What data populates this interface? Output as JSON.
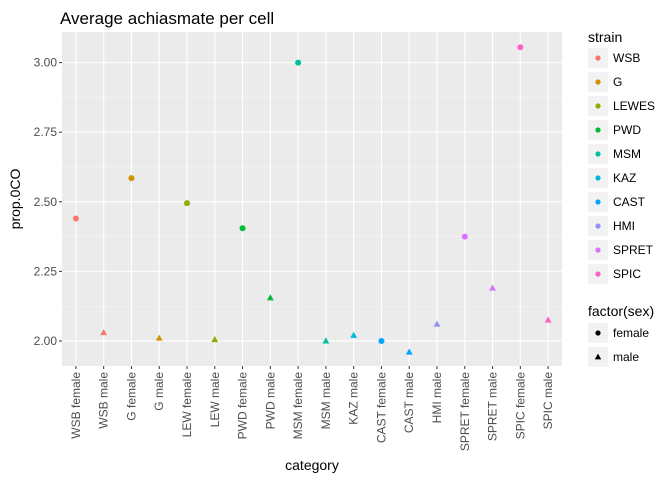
{
  "chart_data": {
    "type": "scatter",
    "title": "Average achiasmate per cell",
    "xlabel": "category",
    "ylabel": "prop.0CO",
    "ylim": [
      1.91,
      3.11
    ],
    "yticks": [
      2.0,
      2.25,
      2.5,
      2.75,
      3.0
    ],
    "ytick_labels": [
      "2.00",
      "2.25",
      "2.50",
      "2.75",
      "3.00"
    ],
    "grid": true,
    "legend_position": "right",
    "categories": [
      "WSB female",
      "WSB male",
      "G female",
      "G male",
      "LEW female",
      "LEW male",
      "PWD female",
      "PWD male",
      "MSM female",
      "MSM male",
      "KAZ male",
      "CAST female",
      "CAST male",
      "HMI male",
      "SPRET female",
      "SPRET male",
      "SPIC female",
      "SPIC male"
    ],
    "points": [
      {
        "category": "WSB female",
        "y": 2.44,
        "strain": "WSB",
        "sex": "female"
      },
      {
        "category": "WSB male",
        "y": 2.03,
        "strain": "WSB",
        "sex": "male"
      },
      {
        "category": "G female",
        "y": 2.585,
        "strain": "G",
        "sex": "female"
      },
      {
        "category": "G male",
        "y": 2.01,
        "strain": "G",
        "sex": "male"
      },
      {
        "category": "LEW female",
        "y": 2.495,
        "strain": "LEWES",
        "sex": "female"
      },
      {
        "category": "LEW male",
        "y": 2.005,
        "strain": "LEWES",
        "sex": "male"
      },
      {
        "category": "PWD female",
        "y": 2.405,
        "strain": "PWD",
        "sex": "female"
      },
      {
        "category": "PWD male",
        "y": 2.155,
        "strain": "PWD",
        "sex": "male"
      },
      {
        "category": "MSM female",
        "y": 3.0,
        "strain": "MSM",
        "sex": "female"
      },
      {
        "category": "MSM male",
        "y": 2.0,
        "strain": "MSM",
        "sex": "male"
      },
      {
        "category": "KAZ male",
        "y": 2.02,
        "strain": "KAZ",
        "sex": "male"
      },
      {
        "category": "CAST female",
        "y": 2.0,
        "strain": "CAST",
        "sex": "female"
      },
      {
        "category": "CAST male",
        "y": 1.96,
        "strain": "CAST",
        "sex": "male"
      },
      {
        "category": "HMI male",
        "y": 2.06,
        "strain": "HMI",
        "sex": "male"
      },
      {
        "category": "SPRET female",
        "y": 2.375,
        "strain": "SPRET",
        "sex": "female"
      },
      {
        "category": "SPRET male",
        "y": 2.19,
        "strain": "SPRET",
        "sex": "male"
      },
      {
        "category": "SPIC female",
        "y": 3.055,
        "strain": "SPIC",
        "sex": "female"
      },
      {
        "category": "SPIC male",
        "y": 2.075,
        "strain": "SPIC",
        "sex": "male"
      }
    ],
    "legends": {
      "strain": {
        "title": "strain",
        "entries": [
          {
            "label": "WSB",
            "color": "#F8766D"
          },
          {
            "label": "G",
            "color": "#D39200"
          },
          {
            "label": "LEWES",
            "color": "#93AA00"
          },
          {
            "label": "PWD",
            "color": "#00BA38"
          },
          {
            "label": "MSM",
            "color": "#00C19F"
          },
          {
            "label": "KAZ",
            "color": "#00B9E3"
          },
          {
            "label": "CAST",
            "color": "#00A7FF"
          },
          {
            "label": "HMI",
            "color": "#9590FF"
          },
          {
            "label": "SPRET",
            "color": "#DB72FB"
          },
          {
            "label": "SPIC",
            "color": "#FF61C3"
          }
        ]
      },
      "sex": {
        "title": "factor(sex)",
        "entries": [
          {
            "label": "female",
            "shape": "circle"
          },
          {
            "label": "male",
            "shape": "triangle"
          }
        ]
      }
    },
    "colors": {
      "panel_background": "#EBEBEB",
      "grid_major": "#FFFFFF",
      "text": "#000000",
      "tick_text": "#4D4D4D"
    }
  }
}
